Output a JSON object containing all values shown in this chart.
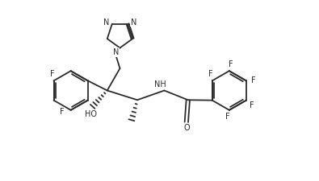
{
  "bg_color": "#ffffff",
  "line_color": "#2c2c2c",
  "text_color": "#2c2c2c",
  "fig_width": 3.95,
  "fig_height": 2.25,
  "dpi": 100,
  "bond_width": 1.3,
  "font_size": 7.0,
  "xlim": [
    0,
    10
  ],
  "ylim": [
    0,
    5.7
  ]
}
